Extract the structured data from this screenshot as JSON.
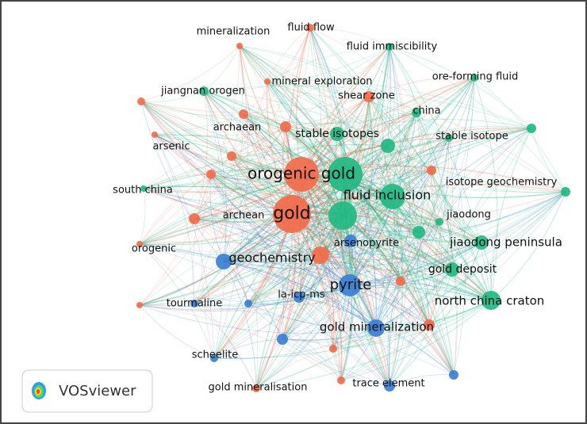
{
  "nodes": [
    {
      "label": "gold"
    },
    {
      "label": "orogenic gold"
    },
    {
      "label": "fluid inclusion"
    },
    {
      "label": "stable isotopes"
    },
    {
      "label": "shear zone"
    },
    {
      "label": "mineral exploration"
    },
    {
      "label": "mineralization"
    },
    {
      "label": "fluid flow"
    },
    {
      "label": "fluid immiscibility"
    },
    {
      "label": "ore-forming fluid"
    },
    {
      "label": "jiangnan orogen"
    },
    {
      "label": "china"
    },
    {
      "label": "archaean"
    },
    {
      "label": "stable isotope"
    },
    {
      "label": "arsenic"
    },
    {
      "label": "south china"
    },
    {
      "label": "isotope geochemistry"
    },
    {
      "label": "archean"
    },
    {
      "label": "jiaodong"
    },
    {
      "label": "jiaodong peninsula"
    },
    {
      "label": "arsenopyrite"
    },
    {
      "label": "geochemistry"
    },
    {
      "label": "orogenic"
    },
    {
      "label": "gold deposit"
    },
    {
      "label": "pyrite"
    },
    {
      "label": "la-icp-ms"
    },
    {
      "label": "tourmaline"
    },
    {
      "label": "north china craton"
    },
    {
      "label": "gold mineralization"
    },
    {
      "label": "scheelite"
    },
    {
      "label": "gold mineralisation"
    },
    {
      "label": "trace element"
    }
  ],
  "logo": "VOSviewer"
}
